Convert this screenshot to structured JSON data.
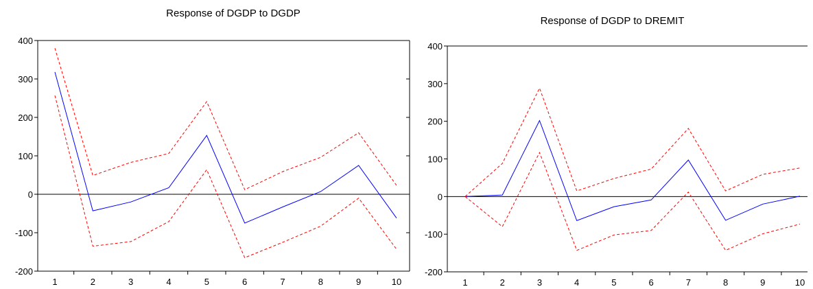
{
  "charts": [
    {
      "chart_data": {
        "type": "line",
        "title": "Response of DGDP to DGDP",
        "xlabel": "",
        "ylabel": "",
        "categories": [
          "1",
          "2",
          "3",
          "4",
          "5",
          "6",
          "7",
          "8",
          "9",
          "10"
        ],
        "ylim": [
          -200,
          400
        ],
        "yticks": [
          -200,
          -100,
          0,
          100,
          200,
          300,
          400
        ],
        "grid": false,
        "zero_line": true,
        "series": [
          {
            "style": "solid",
            "color": "#0000ff",
            "values": [
              318,
              -43,
              -20,
              17,
              153,
              -75,
              -33,
              7,
              75,
              -62
            ]
          },
          {
            "style": "dashed",
            "color": "#ff0000",
            "values": [
              380,
              49,
              83,
              106,
              241,
              12,
              59,
              96,
              160,
              23
            ]
          },
          {
            "style": "dashed",
            "color": "#ff0000",
            "values": [
              257,
              -135,
              -123,
              -71,
              64,
              -165,
              -125,
              -83,
              -10,
              -143
            ]
          }
        ]
      }
    },
    {
      "chart_data": {
        "type": "line",
        "title": "Response of DGDP to DREMIT",
        "xlabel": "",
        "ylabel": "",
        "categories": [
          "1",
          "2",
          "3",
          "4",
          "5",
          "6",
          "7",
          "8",
          "9",
          "10"
        ],
        "ylim": [
          -200,
          400
        ],
        "yticks": [
          -200,
          -100,
          0,
          100,
          200,
          300,
          400
        ],
        "grid": false,
        "zero_line": true,
        "series": [
          {
            "style": "solid",
            "color": "#0000ff",
            "values": [
              0,
              4,
              202,
              -64,
              -27,
              -9,
              97,
              -63,
              -20,
              1
            ]
          },
          {
            "style": "dashed",
            "color": "#ff0000",
            "values": [
              0,
              88,
              288,
              15,
              48,
              73,
              181,
              15,
              59,
              76
            ]
          },
          {
            "style": "dashed",
            "color": "#ff0000",
            "values": [
              0,
              -80,
              117,
              -143,
              -102,
              -90,
              12,
              -143,
              -99,
              -73
            ]
          }
        ]
      }
    }
  ]
}
